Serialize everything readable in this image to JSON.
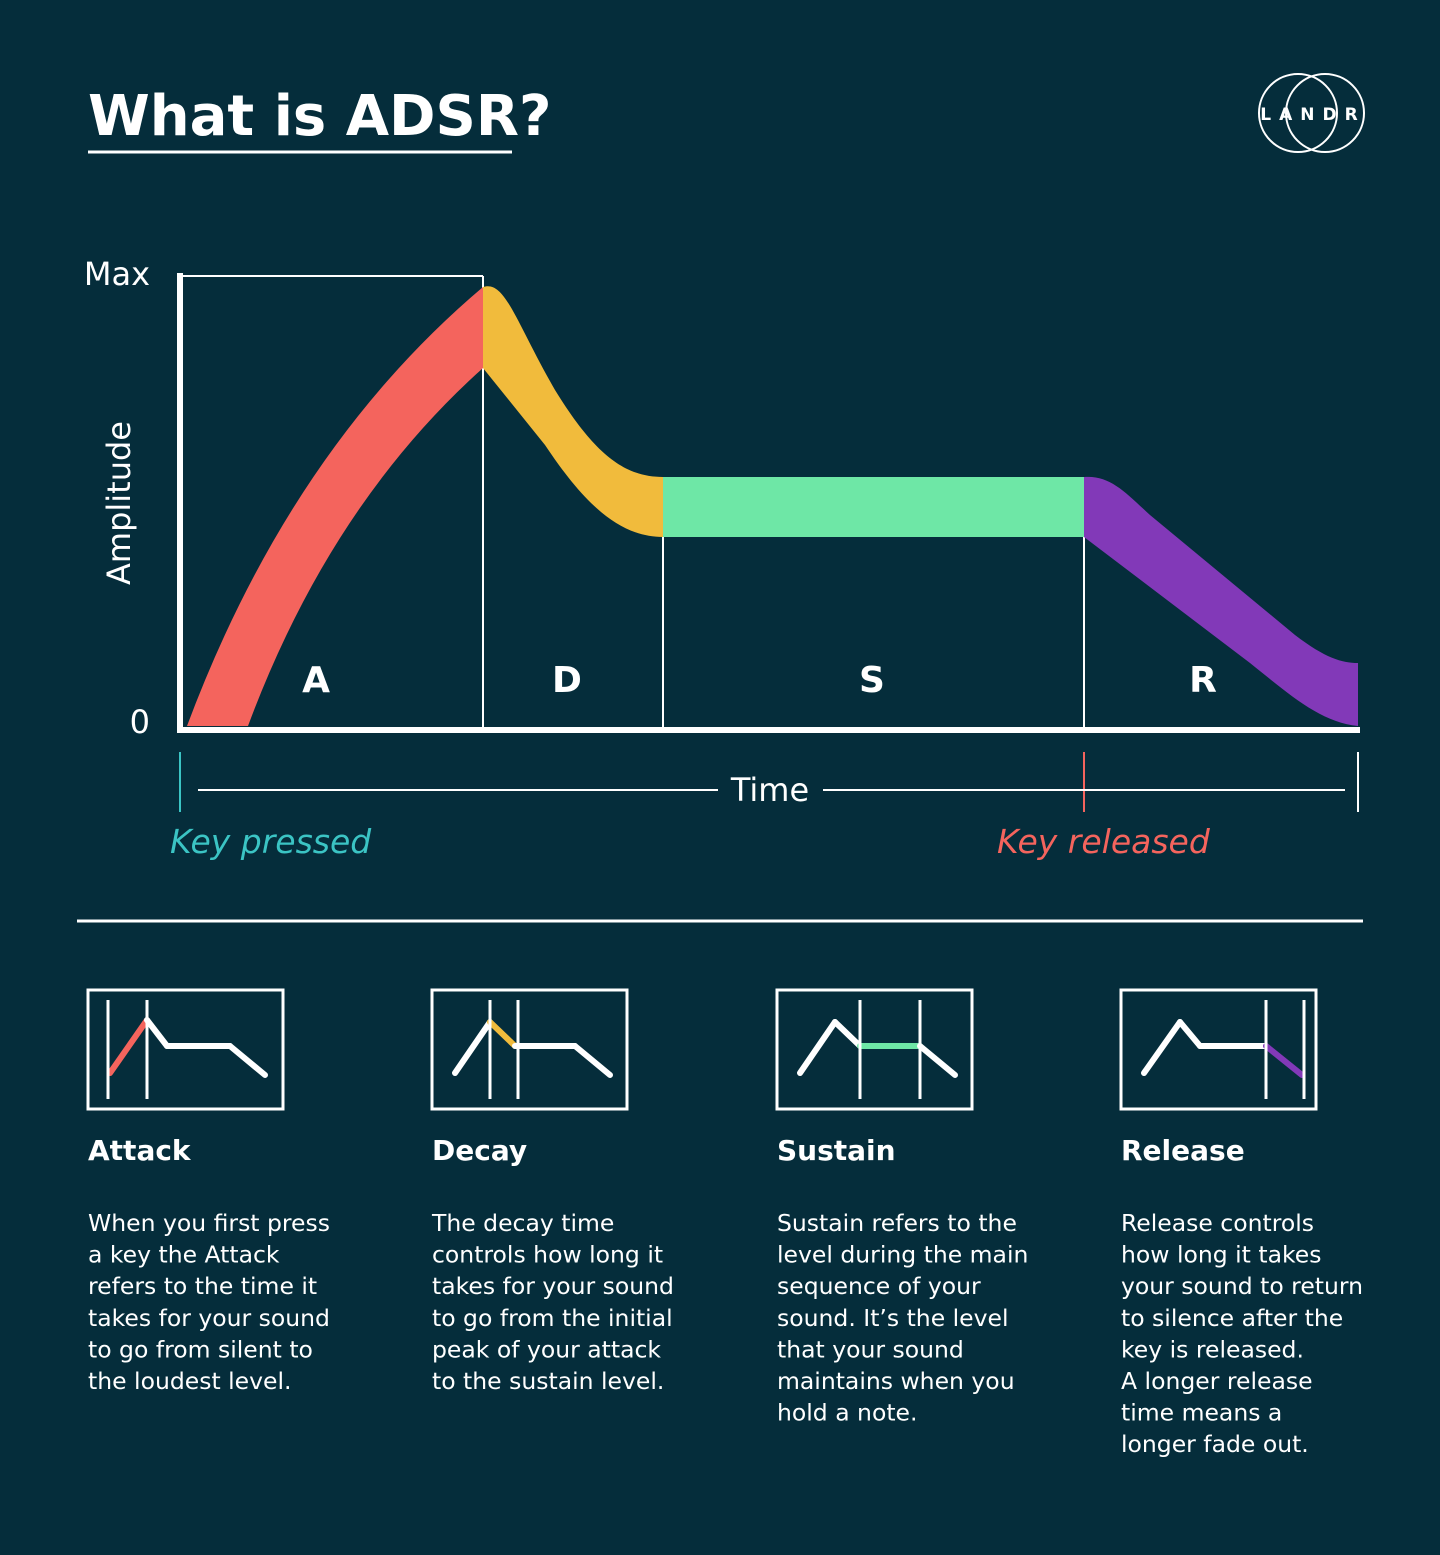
{
  "header": {
    "title": "What is ADSR?",
    "logo": "LANDR"
  },
  "diagram": {
    "y_axis": {
      "label": "Amplitude",
      "max": "Max",
      "min": "0"
    },
    "phases": [
      "A",
      "D",
      "S",
      "R"
    ],
    "x_axis": {
      "label": "Time"
    },
    "events": [
      "Key pressed",
      "Key released"
    ]
  },
  "cards": [
    {
      "title": "Attack",
      "lines": [
        "When you first press",
        "a key the Attack",
        "refers to the time it",
        "takes for your sound",
        "to go from silent to",
        "the loudest level."
      ]
    },
    {
      "title": "Decay",
      "lines": [
        "The decay time",
        "controls how long it",
        "takes for your sound",
        "to go from the initial",
        "peak of your attack",
        "to the sustain level."
      ]
    },
    {
      "title": "Sustain",
      "lines": [
        "Sustain refers to the",
        "level during the main",
        "sequence of your",
        "sound. It’s the level",
        "that your sound",
        "maintains when you",
        "hold a note."
      ]
    },
    {
      "title": "Release",
      "lines": [
        "Release controls",
        "how long it takes",
        "your sound to return",
        "to silence after the",
        "key is released.",
        "A longer release",
        "time means a",
        "longer fade out."
      ]
    }
  ]
}
